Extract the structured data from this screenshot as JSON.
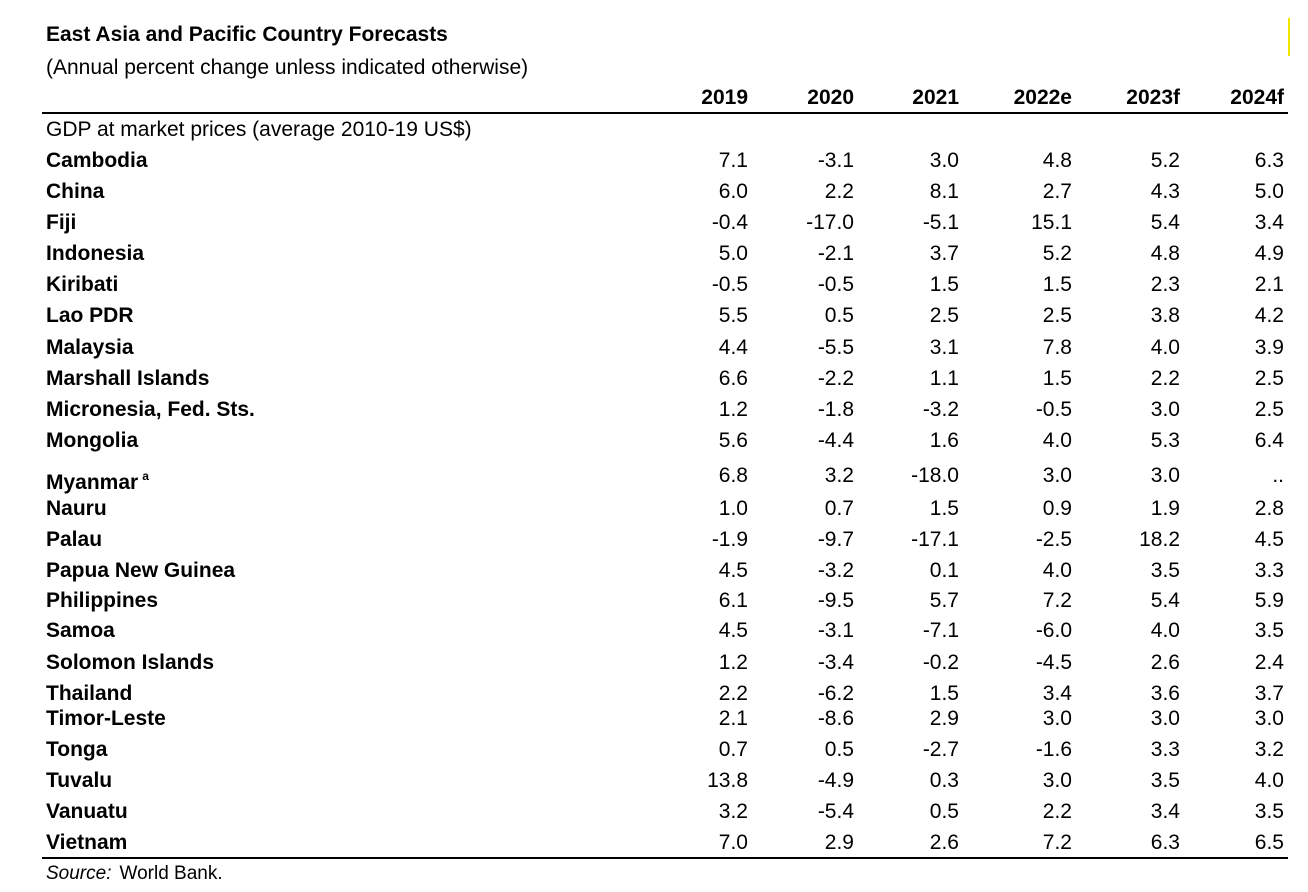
{
  "table": {
    "title": "East Asia and Pacific Country Forecasts",
    "subtitle": "(Annual percent change unless indicated otherwise)",
    "years": [
      "2019",
      "2020",
      "2021",
      "2022e",
      "2023f",
      "2024f"
    ],
    "section_label": "GDP at market prices (average 2010-19 US$)",
    "rows": [
      {
        "country": "Cambodia",
        "note": "",
        "values": [
          "7.1",
          "-3.1",
          "3.0",
          "4.8",
          "5.2",
          "6.3"
        ]
      },
      {
        "country": "China",
        "note": "",
        "values": [
          "6.0",
          "2.2",
          "8.1",
          "2.7",
          "4.3",
          "5.0"
        ]
      },
      {
        "country": "Fiji",
        "note": "",
        "values": [
          "-0.4",
          "-17.0",
          "-5.1",
          "15.1",
          "5.4",
          "3.4"
        ]
      },
      {
        "country": "Indonesia",
        "note": "",
        "values": [
          "5.0",
          "-2.1",
          "3.7",
          "5.2",
          "4.8",
          "4.9"
        ]
      },
      {
        "country": "Kiribati",
        "note": "",
        "values": [
          "-0.5",
          "-0.5",
          "1.5",
          "1.5",
          "2.3",
          "2.1"
        ]
      },
      {
        "country": "Lao PDR",
        "note": "",
        "values": [
          "5.5",
          "0.5",
          "2.5",
          "2.5",
          "3.8",
          "4.2"
        ]
      },
      {
        "country": "Malaysia",
        "note": "",
        "values": [
          "4.4",
          "-5.5",
          "3.1",
          "7.8",
          "4.0",
          "3.9"
        ]
      },
      {
        "country": "Marshall Islands",
        "note": "",
        "values": [
          "6.6",
          "-2.2",
          "1.1",
          "1.5",
          "2.2",
          "2.5"
        ]
      },
      {
        "country": "Micronesia, Fed. Sts.",
        "note": "",
        "values": [
          "1.2",
          "-1.8",
          "-3.2",
          "-0.5",
          "3.0",
          "2.5"
        ]
      },
      {
        "country": "Mongolia",
        "note": "",
        "values": [
          "5.6",
          "-4.4",
          "1.6",
          "4.0",
          "5.3",
          "6.4"
        ]
      },
      {
        "country": "Myanmar",
        "note": "a",
        "values": [
          "6.8",
          "3.2",
          "-18.0",
          "3.0",
          "3.0",
          ".."
        ]
      },
      {
        "country": "Nauru",
        "note": "",
        "values": [
          "1.0",
          "0.7",
          "1.5",
          "0.9",
          "1.9",
          "2.8"
        ]
      },
      {
        "country": "Palau",
        "note": "",
        "values": [
          "-1.9",
          "-9.7",
          "-17.1",
          "-2.5",
          "18.2",
          "4.5"
        ]
      },
      {
        "country": "Papua New Guinea",
        "note": "",
        "values": [
          "4.5",
          "-3.2",
          "0.1",
          "4.0",
          "3.5",
          "3.3"
        ]
      },
      {
        "country": "Philippines",
        "note": "",
        "values": [
          "6.1",
          "-9.5",
          "5.7",
          "7.2",
          "5.4",
          "5.9"
        ]
      },
      {
        "country": "Samoa",
        "note": "",
        "values": [
          "4.5",
          "-3.1",
          "-7.1",
          "-6.0",
          "4.0",
          "3.5"
        ]
      },
      {
        "country": "Solomon Islands",
        "note": "",
        "values": [
          "1.2",
          "-3.4",
          "-0.2",
          "-4.5",
          "2.6",
          "2.4"
        ]
      },
      {
        "country": "Thailand",
        "note": "",
        "values": [
          "2.2",
          "-6.2",
          "1.5",
          "3.4",
          "3.6",
          "3.7"
        ]
      },
      {
        "country": "Timor-Leste",
        "note": "",
        "values": [
          "2.1",
          "-8.6",
          "2.9",
          "3.0",
          "3.0",
          "3.0"
        ]
      },
      {
        "country": "Tonga",
        "note": "",
        "values": [
          "0.7",
          "0.5",
          "-2.7",
          "-1.6",
          "3.3",
          "3.2"
        ]
      },
      {
        "country": "Tuvalu",
        "note": "",
        "values": [
          "13.8",
          "-4.9",
          "0.3",
          "3.0",
          "3.5",
          "4.0"
        ]
      },
      {
        "country": "Vanuatu",
        "note": "",
        "values": [
          "3.2",
          "-5.4",
          "0.5",
          "2.2",
          "3.4",
          "3.5"
        ]
      },
      {
        "country": "Vietnam",
        "note": "",
        "values": [
          "7.0",
          "2.9",
          "2.6",
          "7.2",
          "6.3",
          "6.5"
        ]
      }
    ],
    "source_label": "Source:",
    "source_text": "World Bank."
  }
}
